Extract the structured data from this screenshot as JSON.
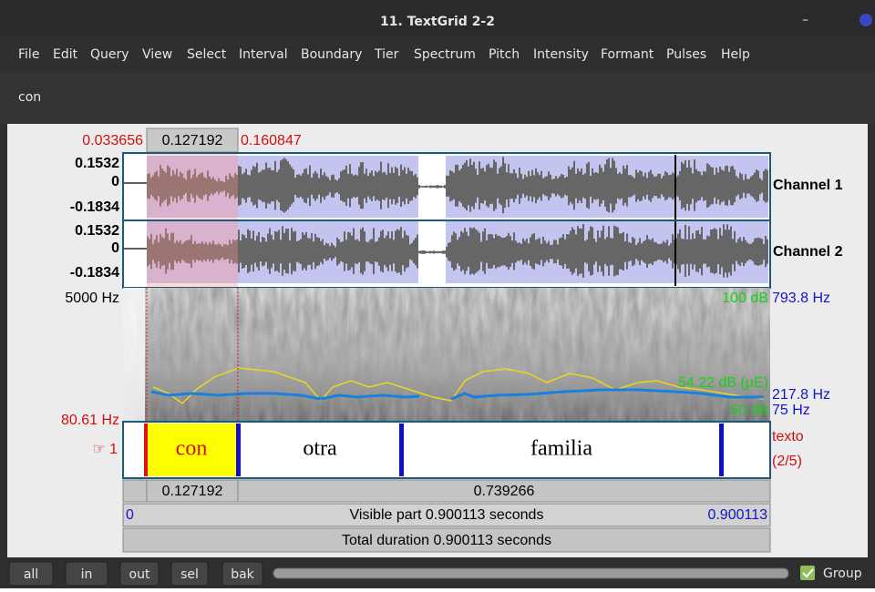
{
  "window": {
    "title": "11. TextGrid 2-2"
  },
  "menu": [
    "File",
    "Edit",
    "Query",
    "View",
    "Select",
    "Interval",
    "Boundary",
    "Tier",
    "Spectrum",
    "Pitch",
    "Intensity",
    "Formant",
    "Pulses",
    "Help"
  ],
  "text_field": "con",
  "selection": {
    "start": "0.033656",
    "duration": "0.127192",
    "end": "0.160847"
  },
  "channels": [
    {
      "max": "0.1532",
      "zero": "0",
      "min": "-0.1834",
      "name": "Channel 1"
    },
    {
      "max": "0.1532",
      "zero": "0",
      "min": "-0.1834",
      "name": "Channel 2"
    }
  ],
  "spectrogram": {
    "top": "5000 Hz",
    "bottom": "80.61 Hz",
    "intensity_top": "100 dB",
    "intensity_value": "54.22 dB (µE)",
    "intensity_bottom": "50 dB",
    "pitch_top": "793.8 Hz",
    "pitch_value": "217.8 Hz",
    "pitch_bottom": "75 Hz"
  },
  "tier": {
    "number": "☞ 1",
    "name": "texto",
    "position": "(2/5)",
    "intervals": [
      "con",
      "otra",
      "familia"
    ]
  },
  "durations": [
    "0.127192",
    "0.739266"
  ],
  "visible": {
    "start": "0",
    "label": "Visible part 0.900113 seconds",
    "end": "0.900113"
  },
  "total": "Total duration 0.900113 seconds",
  "buttons": [
    "all",
    "in",
    "out",
    "sel",
    "bak"
  ],
  "group": "Group"
}
